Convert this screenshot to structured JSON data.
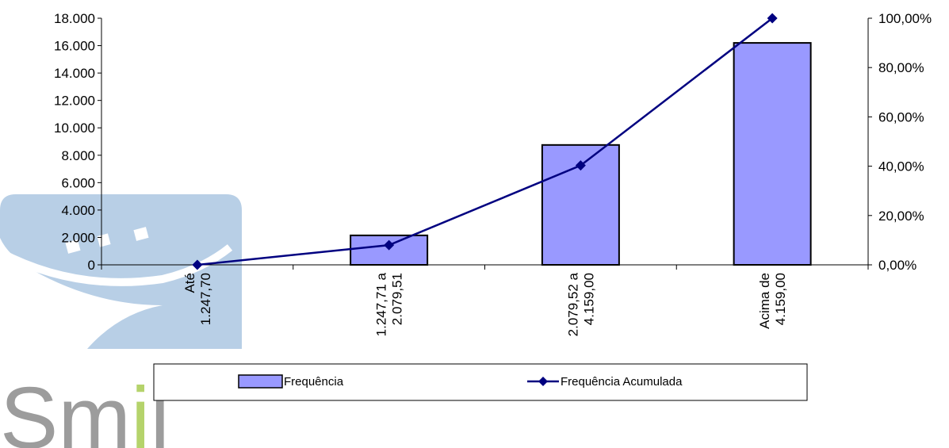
{
  "chart_data": {
    "type": "bar+line",
    "categories": [
      "Até 1.247,70",
      "1.247,71 a 2.079,51",
      "2.079,52 a 4.159,00",
      "Acima de 4.159,00"
    ],
    "category_lines": [
      [
        "Até",
        "1.247,70"
      ],
      [
        "1.247,71 a",
        "2.079,51"
      ],
      [
        "2.079,52 a",
        "4.159,00"
      ],
      [
        "Acima de",
        "4.159,00"
      ]
    ],
    "series": [
      {
        "name": "Frequência",
        "type": "bar",
        "axis": "left",
        "values": [
          0,
          2150,
          8750,
          16200
        ],
        "color": "#9999ff"
      },
      {
        "name": "Frequência Acumulada",
        "type": "line",
        "axis": "right",
        "values": [
          0,
          8.0,
          40.3,
          100.0
        ],
        "color": "#000080"
      }
    ],
    "y_left": {
      "min": 0,
      "max": 18000,
      "ticks": [
        "0",
        "2.000",
        "4.000",
        "6.000",
        "8.000",
        "10.000",
        "12.000",
        "14.000",
        "16.000",
        "18.000"
      ]
    },
    "y_right": {
      "min": 0,
      "max": 100,
      "ticks": [
        "0,00%",
        "20,00%",
        "40,00%",
        "60,00%",
        "80,00%",
        "100,00%"
      ]
    },
    "legend": {
      "position": "bottom",
      "items": [
        "Frequência",
        "Frequência Acumulada"
      ]
    },
    "grid": false
  },
  "watermark": {
    "text": "Smile",
    "colors": {
      "grey": "#9c9c9c",
      "accent": "#b5d36b",
      "shape": "#b8cfe6"
    }
  }
}
